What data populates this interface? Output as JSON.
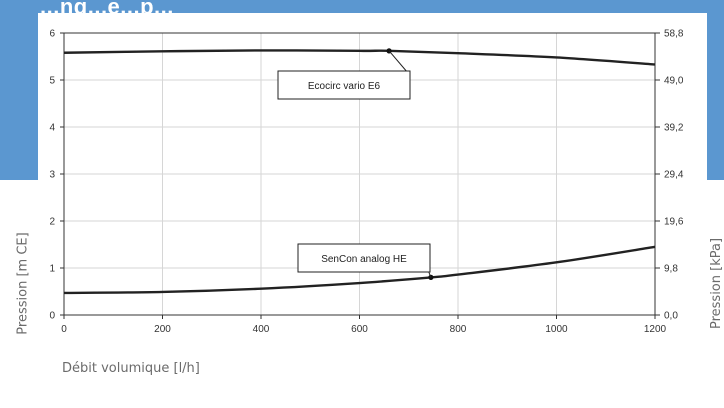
{
  "banner": {
    "partial_title": "...ng...e...p..."
  },
  "axes": {
    "ylabel_left": "Pression [m CE]",
    "ylabel_right": "Pression [kPa]",
    "xlabel": "Débit volumique [l/h]"
  },
  "colors": {
    "banner": "#5b97d0",
    "curve": "#222222",
    "grid": "#d6d6d6"
  },
  "chart_data": {
    "type": "line",
    "title": "",
    "xlabel": "Débit volumique [l/h]",
    "ylabel": "Pression [m CE]",
    "ylabel_right": "Pression [kPa]",
    "xlim": [
      0,
      1200
    ],
    "ylim": [
      0,
      6
    ],
    "x_ticks": [
      "0",
      "200",
      "400",
      "600",
      "800",
      "1000",
      "1200"
    ],
    "y_ticks_left": [
      "0",
      "1",
      "2",
      "3",
      "4",
      "5",
      "6"
    ],
    "y_ticks_right": [
      "0,0",
      "9,8",
      "19,6",
      "29,4",
      "39,2",
      "49,0",
      "58,8"
    ],
    "grid": true,
    "series": [
      {
        "name": "Ecocirc vario E6",
        "x": [
          0,
          200,
          400,
          600,
          660,
          800,
          1000,
          1200
        ],
        "y": [
          5.58,
          5.61,
          5.63,
          5.62,
          5.62,
          5.57,
          5.48,
          5.33
        ],
        "marker": {
          "x": 660,
          "y": 5.62
        }
      },
      {
        "name": "SenCon analog HE",
        "x": [
          0,
          200,
          400,
          600,
          745,
          800,
          1000,
          1200
        ],
        "y": [
          0.47,
          0.49,
          0.56,
          0.68,
          0.8,
          0.86,
          1.12,
          1.45
        ],
        "marker": {
          "x": 745,
          "y": 0.8
        }
      }
    ]
  }
}
